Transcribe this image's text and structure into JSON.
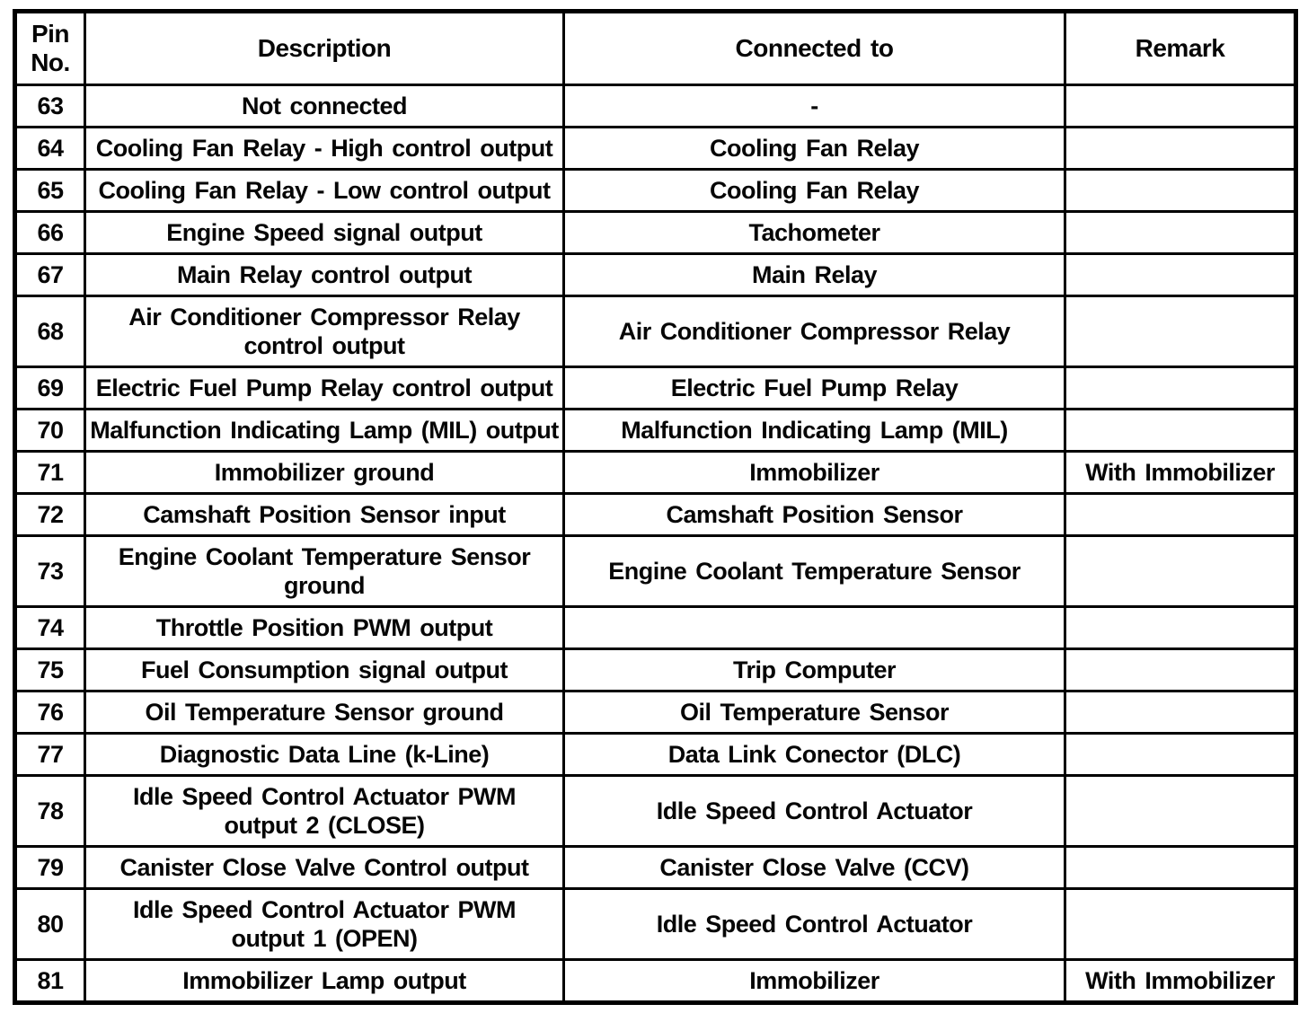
{
  "table": {
    "headers": [
      "Pin\nNo.",
      "Description",
      "Connected to",
      "Remark"
    ],
    "rows": [
      {
        "pin": "63",
        "description": "Not connected",
        "connected_to": "-",
        "remark": ""
      },
      {
        "pin": "64",
        "description": "Cooling Fan Relay - High control output",
        "connected_to": "Cooling Fan Relay",
        "remark": ""
      },
      {
        "pin": "65",
        "description": "Cooling Fan Relay - Low control output",
        "connected_to": "Cooling Fan Relay",
        "remark": ""
      },
      {
        "pin": "66",
        "description": "Engine Speed signal output",
        "connected_to": "Tachometer",
        "remark": ""
      },
      {
        "pin": "67",
        "description": "Main Relay control output",
        "connected_to": "Main Relay",
        "remark": ""
      },
      {
        "pin": "68",
        "description": "Air Conditioner Compressor Relay\ncontrol output",
        "connected_to": "Air Conditioner Compressor Relay",
        "remark": ""
      },
      {
        "pin": "69",
        "description": "Electric Fuel Pump Relay control output",
        "connected_to": "Electric Fuel Pump Relay",
        "remark": ""
      },
      {
        "pin": "70",
        "description": "Malfunction Indicating Lamp (MIL) output",
        "connected_to": "Malfunction Indicating Lamp (MIL)",
        "remark": ""
      },
      {
        "pin": "71",
        "description": "Immobilizer ground",
        "connected_to": "Immobilizer",
        "remark": "With Immobilizer"
      },
      {
        "pin": "72",
        "description": "Camshaft Position Sensor input",
        "connected_to": "Camshaft Position Sensor",
        "remark": ""
      },
      {
        "pin": "73",
        "description": "Engine Coolant Temperature Sensor\nground",
        "connected_to": "Engine Coolant Temperature Sensor",
        "remark": ""
      },
      {
        "pin": "74",
        "description": "Throttle Position PWM output",
        "connected_to": "",
        "remark": ""
      },
      {
        "pin": "75",
        "description": "Fuel Consumption signal output",
        "connected_to": "Trip Computer",
        "remark": ""
      },
      {
        "pin": "76",
        "description": "Oil Temperature Sensor ground",
        "connected_to": "Oil Temperature Sensor",
        "remark": ""
      },
      {
        "pin": "77",
        "description": "Diagnostic Data Line (k-Line)",
        "connected_to": "Data Link Conector (DLC)",
        "remark": ""
      },
      {
        "pin": "78",
        "description": "Idle Speed Control Actuator PWM\noutput 2 (CLOSE)",
        "connected_to": "Idle Speed Control Actuator",
        "remark": ""
      },
      {
        "pin": "79",
        "description": "Canister Close Valve Control output",
        "connected_to": "Canister Close Valve (CCV)",
        "remark": ""
      },
      {
        "pin": "80",
        "description": "Idle Speed Control Actuator PWM\noutput 1 (OPEN)",
        "connected_to": "Idle Speed Control Actuator",
        "remark": ""
      },
      {
        "pin": "81",
        "description": "Immobilizer Lamp output",
        "connected_to": "Immobilizer",
        "remark": "With Immobilizer"
      }
    ]
  }
}
